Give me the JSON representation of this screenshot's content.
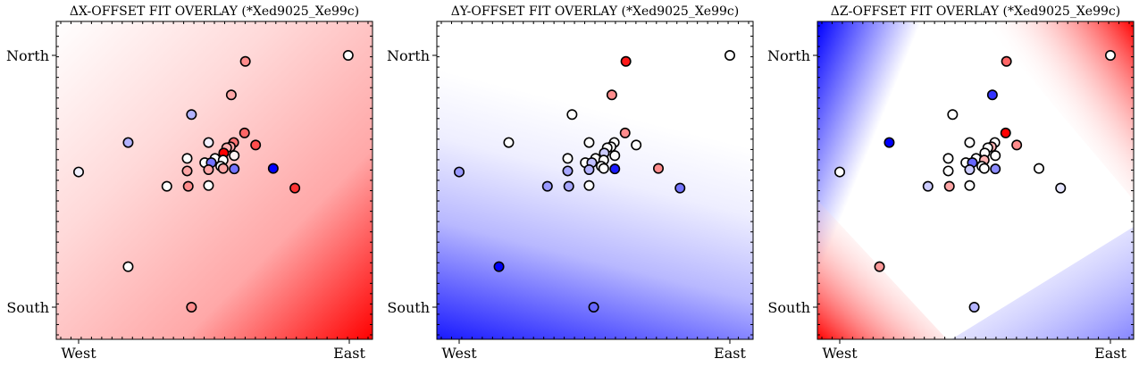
{
  "chart_data": [
    {
      "type": "scatter",
      "title": "ΔX-OFFSET FIT OVERLAY (*Xed9025_Xe99c)",
      "xticks": [
        "West",
        "East"
      ],
      "yticks": [
        "North",
        "South"
      ],
      "xlim": [
        0,
        1
      ],
      "ylim": [
        0,
        1
      ],
      "background": "fitted surface, blue-white-red diverging",
      "colormap": [
        "#0000ff",
        "#ffffff",
        "#ff0000"
      ],
      "point_outline": "#000000",
      "points": [
        {
          "x": 0.0,
          "y": 0.537,
          "c": -0.05
        },
        {
          "x": 0.183,
          "y": 0.161,
          "c": 0.0
        },
        {
          "x": 0.417,
          "y": 0.0,
          "c": 0.45
        },
        {
          "x": 0.996,
          "y": 1.0,
          "c": 0.0
        },
        {
          "x": 0.616,
          "y": 0.976,
          "c": 0.45
        },
        {
          "x": 0.564,
          "y": 0.843,
          "c": 0.35
        },
        {
          "x": 0.417,
          "y": 0.765,
          "c": -0.3
        },
        {
          "x": 0.183,
          "y": 0.654,
          "c": -0.3
        },
        {
          "x": 0.48,
          "y": 0.654,
          "c": -0.05
        },
        {
          "x": 0.613,
          "y": 0.692,
          "c": 0.6
        },
        {
          "x": 0.573,
          "y": 0.654,
          "c": 0.55
        },
        {
          "x": 0.561,
          "y": 0.637,
          "c": 0.35
        },
        {
          "x": 0.547,
          "y": 0.633,
          "c": 0.3
        },
        {
          "x": 0.654,
          "y": 0.644,
          "c": 0.7
        },
        {
          "x": 0.536,
          "y": 0.612,
          "c": 1.0
        },
        {
          "x": 0.575,
          "y": 0.602,
          "c": 0.05
        },
        {
          "x": 0.401,
          "y": 0.591,
          "c": 0.0
        },
        {
          "x": 0.504,
          "y": 0.591,
          "c": 0.0
        },
        {
          "x": 0.534,
          "y": 0.584,
          "c": 0.0
        },
        {
          "x": 0.466,
          "y": 0.574,
          "c": 0.0
        },
        {
          "x": 0.525,
          "y": 0.56,
          "c": 0.0
        },
        {
          "x": 0.49,
          "y": 0.574,
          "c": -0.55
        },
        {
          "x": 0.534,
          "y": 0.551,
          "c": 0.35
        },
        {
          "x": 0.575,
          "y": 0.549,
          "c": -0.55
        },
        {
          "x": 0.48,
          "y": 0.546,
          "c": 0.35
        },
        {
          "x": 0.401,
          "y": 0.541,
          "c": 0.35
        },
        {
          "x": 0.719,
          "y": 0.551,
          "c": -1.0
        },
        {
          "x": 0.799,
          "y": 0.473,
          "c": 0.8
        },
        {
          "x": 0.326,
          "y": 0.48,
          "c": 0.0
        },
        {
          "x": 0.405,
          "y": 0.48,
          "c": 0.45
        },
        {
          "x": 0.48,
          "y": 0.483,
          "c": 0.0
        }
      ]
    },
    {
      "type": "scatter",
      "title": "ΔY-OFFSET FIT OVERLAY (*Xed9025_Xe99c)",
      "xticks": [
        "West",
        "East"
      ],
      "yticks": [
        "North",
        "South"
      ],
      "xlim": [
        0,
        1
      ],
      "ylim": [
        0,
        1
      ],
      "background": "fitted surface, blue-white-red diverging",
      "colormap": [
        "#0000ff",
        "#ffffff",
        "#ff0000"
      ],
      "point_outline": "#000000",
      "points": [
        {
          "x": 0.0,
          "y": 0.537,
          "c": -0.4
        },
        {
          "x": 0.147,
          "y": 0.161,
          "c": -1.0
        },
        {
          "x": 0.497,
          "y": 0.0,
          "c": -0.6
        },
        {
          "x": 1.0,
          "y": 1.0,
          "c": 0.0
        },
        {
          "x": 0.616,
          "y": 0.976,
          "c": 0.9
        },
        {
          "x": 0.564,
          "y": 0.843,
          "c": 0.45
        },
        {
          "x": 0.417,
          "y": 0.765,
          "c": 0.0
        },
        {
          "x": 0.183,
          "y": 0.654,
          "c": 0.0
        },
        {
          "x": 0.48,
          "y": 0.654,
          "c": 0.0
        },
        {
          "x": 0.613,
          "y": 0.692,
          "c": 0.45
        },
        {
          "x": 0.573,
          "y": 0.654,
          "c": 0.0
        },
        {
          "x": 0.561,
          "y": 0.637,
          "c": 0.0
        },
        {
          "x": 0.547,
          "y": 0.633,
          "c": 0.0
        },
        {
          "x": 0.654,
          "y": 0.644,
          "c": 0.0
        },
        {
          "x": 0.536,
          "y": 0.612,
          "c": -0.2
        },
        {
          "x": 0.575,
          "y": 0.602,
          "c": 0.0
        },
        {
          "x": 0.401,
          "y": 0.591,
          "c": 0.0
        },
        {
          "x": 0.504,
          "y": 0.591,
          "c": 0.0
        },
        {
          "x": 0.534,
          "y": 0.584,
          "c": 0.0
        },
        {
          "x": 0.466,
          "y": 0.574,
          "c": 0.0
        },
        {
          "x": 0.525,
          "y": 0.56,
          "c": 0.0
        },
        {
          "x": 0.49,
          "y": 0.574,
          "c": -0.25
        },
        {
          "x": 0.534,
          "y": 0.551,
          "c": 0.0
        },
        {
          "x": 0.575,
          "y": 0.549,
          "c": -0.9
        },
        {
          "x": 0.48,
          "y": 0.546,
          "c": -0.3
        },
        {
          "x": 0.401,
          "y": 0.541,
          "c": -0.35
        },
        {
          "x": 0.736,
          "y": 0.551,
          "c": 0.45
        },
        {
          "x": 0.816,
          "y": 0.473,
          "c": -0.55
        },
        {
          "x": 0.326,
          "y": 0.48,
          "c": -0.4
        },
        {
          "x": 0.405,
          "y": 0.48,
          "c": -0.35
        },
        {
          "x": 0.48,
          "y": 0.483,
          "c": 0.0
        }
      ]
    },
    {
      "type": "scatter",
      "title": "ΔZ-OFFSET FIT OVERLAY (*Xed9025_Xe99c)",
      "xticks": [
        "West",
        "East"
      ],
      "yticks": [
        "North",
        "South"
      ],
      "xlim": [
        0,
        1
      ],
      "ylim": [
        0,
        1
      ],
      "background": "fitted surface, blue-white-red diverging",
      "colormap": [
        "#0000ff",
        "#ffffff",
        "#ff0000"
      ],
      "point_outline": "#000000",
      "points": [
        {
          "x": 0.0,
          "y": 0.537,
          "c": 0.0
        },
        {
          "x": 0.147,
          "y": 0.161,
          "c": 0.4
        },
        {
          "x": 0.497,
          "y": 0.0,
          "c": -0.3
        },
        {
          "x": 1.0,
          "y": 1.0,
          "c": 0.0
        },
        {
          "x": 0.616,
          "y": 0.976,
          "c": 0.6
        },
        {
          "x": 0.564,
          "y": 0.843,
          "c": -0.8
        },
        {
          "x": 0.417,
          "y": 0.765,
          "c": 0.0
        },
        {
          "x": 0.183,
          "y": 0.654,
          "c": -1.0
        },
        {
          "x": 0.48,
          "y": 0.654,
          "c": 0.0
        },
        {
          "x": 0.613,
          "y": 0.692,
          "c": 1.0
        },
        {
          "x": 0.573,
          "y": 0.654,
          "c": 0.0
        },
        {
          "x": 0.561,
          "y": 0.637,
          "c": 0.3
        },
        {
          "x": 0.547,
          "y": 0.633,
          "c": 0.0
        },
        {
          "x": 0.654,
          "y": 0.644,
          "c": 0.45
        },
        {
          "x": 0.536,
          "y": 0.612,
          "c": 0.0
        },
        {
          "x": 0.575,
          "y": 0.602,
          "c": 0.0
        },
        {
          "x": 0.401,
          "y": 0.591,
          "c": 0.0
        },
        {
          "x": 0.504,
          "y": 0.591,
          "c": 0.0
        },
        {
          "x": 0.534,
          "y": 0.584,
          "c": 0.3
        },
        {
          "x": 0.466,
          "y": 0.574,
          "c": 0.0
        },
        {
          "x": 0.525,
          "y": 0.56,
          "c": 0.0
        },
        {
          "x": 0.49,
          "y": 0.574,
          "c": -0.6
        },
        {
          "x": 0.534,
          "y": 0.551,
          "c": 0.0
        },
        {
          "x": 0.575,
          "y": 0.549,
          "c": -0.45
        },
        {
          "x": 0.48,
          "y": 0.546,
          "c": -0.2
        },
        {
          "x": 0.401,
          "y": 0.541,
          "c": 0.0
        },
        {
          "x": 0.736,
          "y": 0.551,
          "c": 0.0
        },
        {
          "x": 0.816,
          "y": 0.473,
          "c": -0.1
        },
        {
          "x": 0.326,
          "y": 0.48,
          "c": -0.2
        },
        {
          "x": 0.405,
          "y": 0.48,
          "c": 0.35
        },
        {
          "x": 0.48,
          "y": 0.483,
          "c": 0.0
        }
      ]
    }
  ]
}
